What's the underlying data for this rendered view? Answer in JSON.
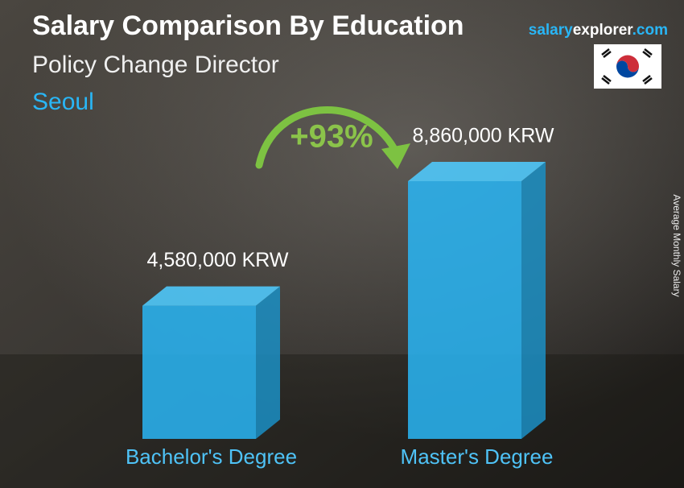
{
  "chart_data": {
    "type": "bar3d",
    "title": "Salary Comparison By Education",
    "subtitle": "Policy Change Director",
    "location": "Seoul",
    "site": [
      "salary",
      "explorer",
      ".com"
    ],
    "axis_label": "Average Monthly Salary",
    "categories": [
      "Bachelor's Degree",
      "Master's Degree"
    ],
    "values": [
      4580000,
      8860000
    ],
    "value_labels": [
      "4,580,000 KRW",
      "8,860,000 KRW"
    ],
    "change": "+93%",
    "color": "#29b6f6"
  }
}
